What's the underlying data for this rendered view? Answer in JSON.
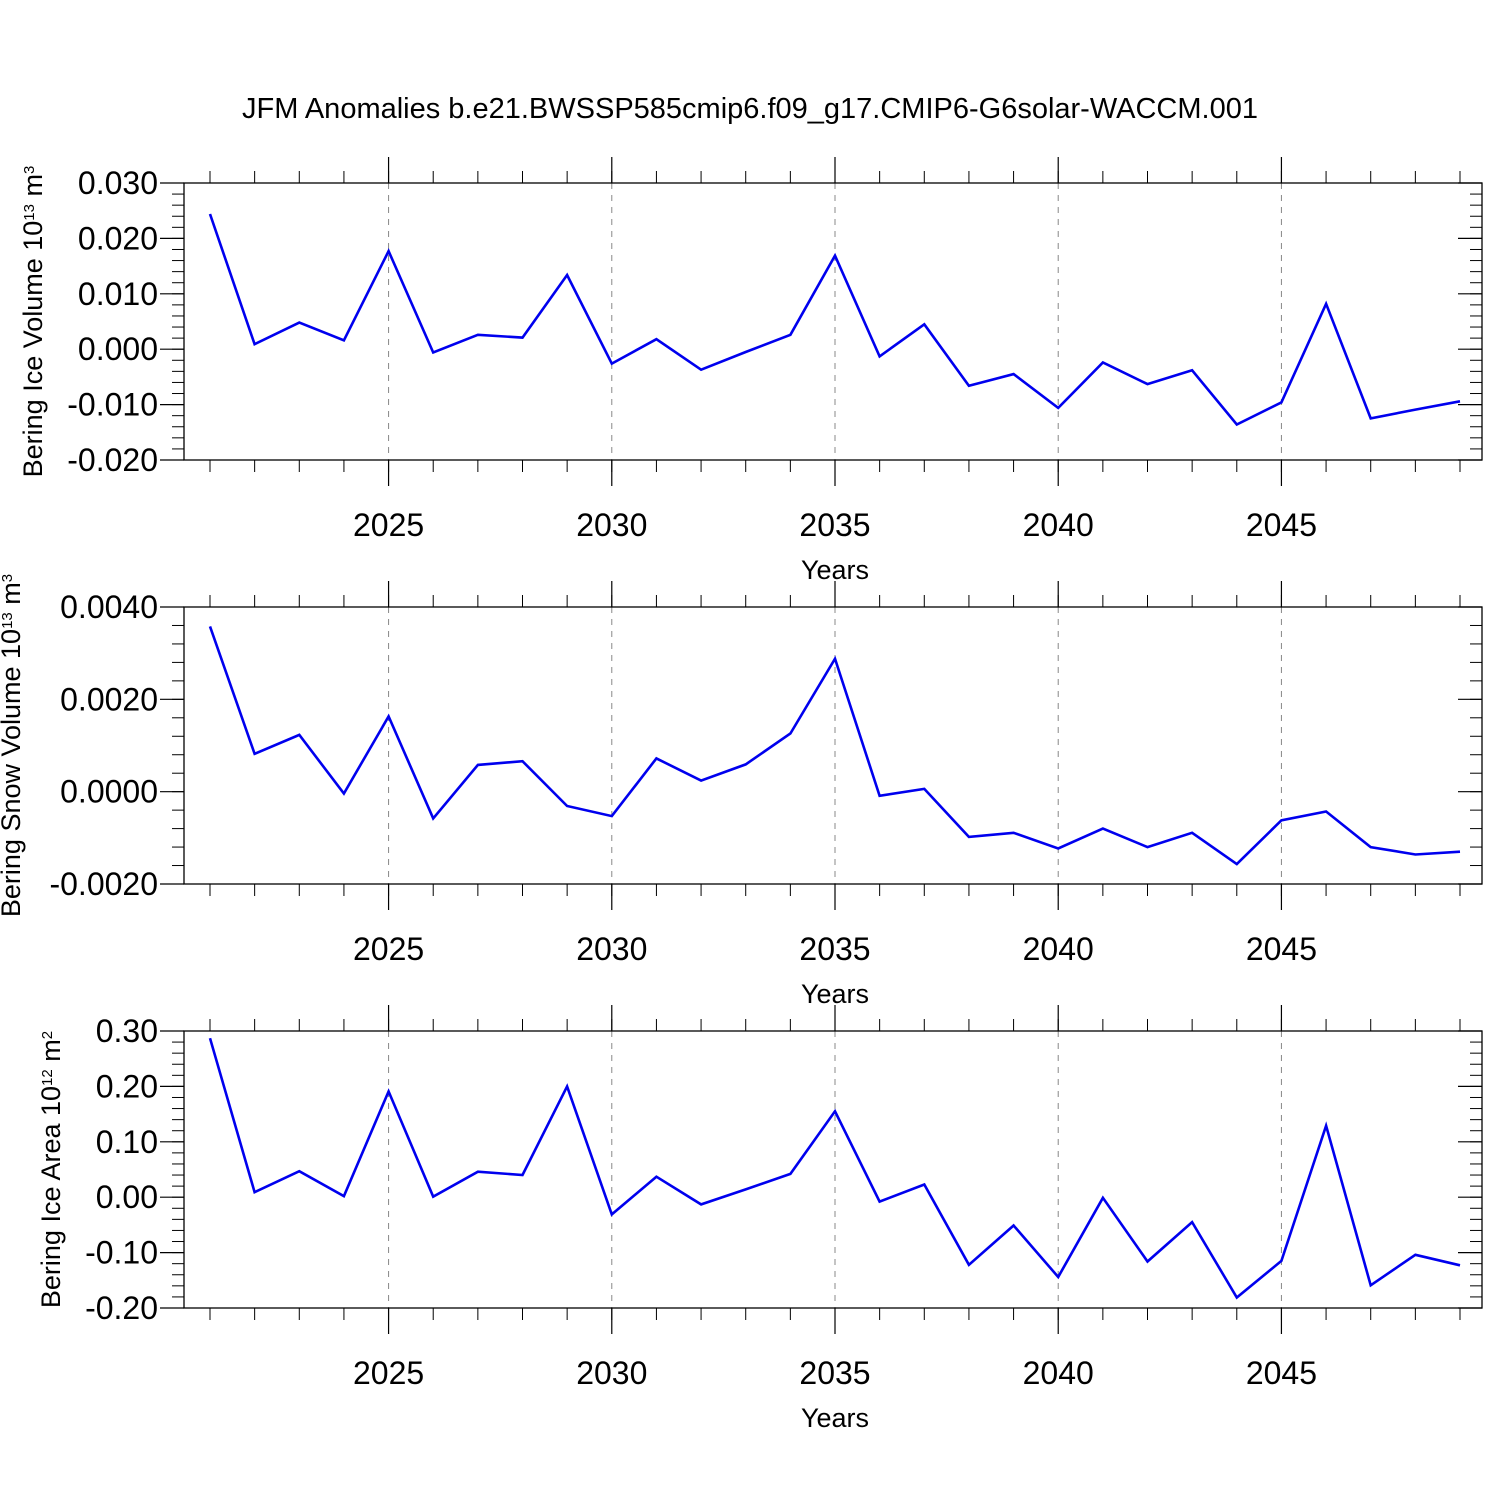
{
  "title": "JFM Anomalies b.e21.BWSSP585cmip6.f09_g17.CMIP6-G6solar-WACCM.001",
  "line_color": "#0000ee",
  "chart_data": [
    {
      "type": "line",
      "ylabel": "Bering Ice Volume 10",
      "ylabel_exponent": "13",
      "ylabel_unit": "m",
      "ylabel_unit_exponent": "3",
      "xlabel": "Years",
      "xlim": [
        2021,
        2049
      ],
      "ylim": [
        -0.02,
        0.03
      ],
      "yticks": [
        0.03,
        0.02,
        0.01,
        0.0,
        -0.01,
        -0.02
      ],
      "ytick_labels": [
        "0.030",
        "0.020",
        "0.010",
        "0.000",
        "-0.010",
        "-0.020"
      ],
      "xticks": [
        2025,
        2030,
        2035,
        2040,
        2045
      ],
      "xtick_labels": [
        "2025",
        "2030",
        "2035",
        "2040",
        "2045"
      ],
      "grid": "vertical-dashed-at-major-x",
      "x": [
        2021,
        2022,
        2023,
        2024,
        2025,
        2026,
        2027,
        2028,
        2029,
        2030,
        2031,
        2032,
        2033,
        2034,
        2035,
        2036,
        2037,
        2038,
        2039,
        2040,
        2041,
        2042,
        2043,
        2044,
        2045,
        2046,
        2047,
        2048,
        2049
      ],
      "values": [
        0.0244,
        0.0009,
        0.0048,
        0.0016,
        0.0177,
        -0.0006,
        0.0026,
        0.0021,
        0.0134,
        -0.0026,
        0.0018,
        -0.0037,
        -0.0005,
        0.0026,
        0.0169,
        -0.0013,
        0.0045,
        -0.0066,
        -0.0045,
        -0.0106,
        -0.0024,
        -0.0063,
        -0.0038,
        -0.0136,
        -0.0096,
        0.0082,
        -0.0125,
        -0.0109,
        -0.0094
      ]
    },
    {
      "type": "line",
      "ylabel": "Bering Snow Volume 10",
      "ylabel_exponent": "13",
      "ylabel_unit": "m",
      "ylabel_unit_exponent": "3",
      "xlabel": "Years",
      "xlim": [
        2021,
        2049
      ],
      "ylim": [
        -0.002,
        0.004
      ],
      "yticks": [
        0.004,
        0.002,
        0.0,
        -0.002
      ],
      "ytick_labels": [
        "0.0040",
        "0.0020",
        "0.0000",
        "-0.0020"
      ],
      "xticks": [
        2025,
        2030,
        2035,
        2040,
        2045
      ],
      "xtick_labels": [
        "2025",
        "2030",
        "2035",
        "2040",
        "2045"
      ],
      "grid": "vertical-dashed-at-major-x",
      "x": [
        2021,
        2022,
        2023,
        2024,
        2025,
        2026,
        2027,
        2028,
        2029,
        2030,
        2031,
        2032,
        2033,
        2034,
        2035,
        2036,
        2037,
        2038,
        2039,
        2040,
        2041,
        2042,
        2043,
        2044,
        2045,
        2046,
        2047,
        2048,
        2049
      ],
      "values": [
        0.00358,
        0.00082,
        0.00123,
        -4e-05,
        0.00163,
        -0.00058,
        0.00058,
        0.00066,
        -0.00031,
        -0.00053,
        0.00072,
        0.00024,
        0.00059,
        0.00126,
        0.00288,
        -9e-05,
        6e-05,
        -0.00098,
        -0.00089,
        -0.00123,
        -0.0008,
        -0.0012,
        -0.00089,
        -0.00157,
        -0.00062,
        -0.00043,
        -0.0012,
        -0.00136,
        -0.0013
      ]
    },
    {
      "type": "line",
      "ylabel": "Bering Ice Area 10",
      "ylabel_exponent": "12",
      "ylabel_unit": "m",
      "ylabel_unit_exponent": "2",
      "xlabel": "Years",
      "xlim": [
        2021,
        2049
      ],
      "ylim": [
        -0.2,
        0.3
      ],
      "yticks": [
        0.3,
        0.2,
        0.1,
        0.0,
        -0.1,
        -0.2
      ],
      "ytick_labels": [
        "0.30",
        "0.20",
        "0.10",
        "0.00",
        "-0.10",
        "-0.20"
      ],
      "xticks": [
        2025,
        2030,
        2035,
        2040,
        2045
      ],
      "xtick_labels": [
        "2025",
        "2030",
        "2035",
        "2040",
        "2045"
      ],
      "grid": "vertical-dashed-at-major-x",
      "x": [
        2021,
        2022,
        2023,
        2024,
        2025,
        2026,
        2027,
        2028,
        2029,
        2030,
        2031,
        2032,
        2033,
        2034,
        2035,
        2036,
        2037,
        2038,
        2039,
        2040,
        2041,
        2042,
        2043,
        2044,
        2045,
        2046,
        2047,
        2048,
        2049
      ],
      "values": [
        0.287,
        0.009,
        0.047,
        0.002,
        0.191,
        0.001,
        0.046,
        0.04,
        0.2,
        -0.031,
        0.037,
        -0.013,
        0.014,
        0.042,
        0.155,
        -0.008,
        0.023,
        -0.122,
        -0.051,
        -0.144,
        -0.001,
        -0.116,
        -0.045,
        -0.181,
        -0.115,
        0.129,
        -0.159,
        -0.104,
        -0.123
      ]
    }
  ]
}
